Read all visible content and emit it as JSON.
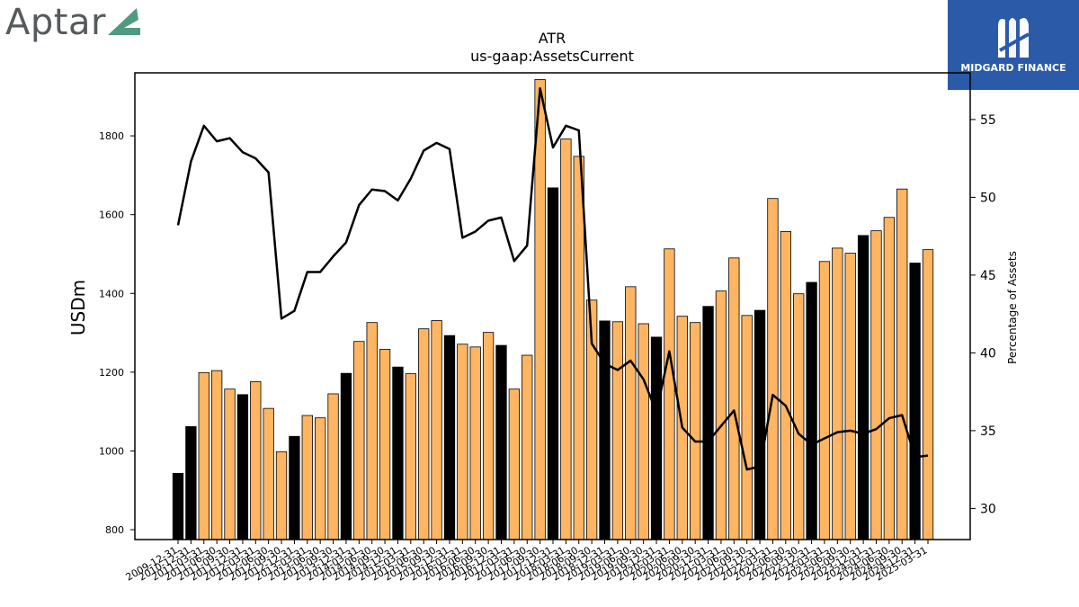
{
  "logos": {
    "left_text": "Aptar",
    "right_text": "MIDGARD FINANCE"
  },
  "colors": {
    "bar_orange": "#ffb562",
    "bar_black": "#000000",
    "line": "#000000",
    "logo_accent": "#4f9a80",
    "logo_right_bg": "#2b5aa8"
  },
  "chart_data": {
    "type": "bar",
    "title": "ATR",
    "subtitle": "us-gaap:AssetsCurrent",
    "ylabel": "USDm",
    "y2label": "Percentage of Assets",
    "ylim": [
      775,
      1960
    ],
    "y2lim": [
      28,
      58
    ],
    "yticks": [
      800,
      1000,
      1200,
      1400,
      1600,
      1800
    ],
    "y2ticks": [
      30,
      35,
      40,
      45,
      50,
      55
    ],
    "grid": false,
    "categories": [
      "2009-12-31",
      "2010-12-31",
      "2011-03-31",
      "2011-06-30",
      "2011-09-30",
      "2011-12-31",
      "2012-03-31",
      "2012-06-30",
      "2012-09-30",
      "2012-12-31",
      "2013-03-31",
      "2013-06-30",
      "2013-09-30",
      "2013-12-31",
      "2014-03-31",
      "2014-06-30",
      "2014-09-30",
      "2014-12-31",
      "2015-03-31",
      "2015-06-30",
      "2015-09-30",
      "2015-12-31",
      "2016-03-31",
      "2016-06-30",
      "2016-09-30",
      "2016-12-31",
      "2017-03-31",
      "2017-06-30",
      "2017-09-30",
      "2017-12-31",
      "2018-03-31",
      "2018-06-30",
      "2018-09-30",
      "2018-12-31",
      "2019-03-31",
      "2019-06-30",
      "2019-09-30",
      "2019-12-31",
      "2020-03-31",
      "2020-06-30",
      "2020-09-30",
      "2020-12-31",
      "2021-03-31",
      "2021-06-30",
      "2021-09-30",
      "2021-12-31",
      "2022-03-31",
      "2022-06-30",
      "2022-09-30",
      "2022-12-31",
      "2023-03-31",
      "2023-06-30",
      "2023-09-30",
      "2023-12-31",
      "2024-03-31",
      "2024-06-30",
      "2024-09-30",
      "2024-12-31",
      "2025-03-31"
    ],
    "series": [
      {
        "values": [
          943,
          1062,
          1199,
          1204,
          1157,
          1143,
          1176,
          1108,
          998,
          1037,
          1090,
          1084,
          1145,
          1197,
          1278,
          1326,
          1258,
          1213,
          1196,
          1310,
          1331,
          1293,
          1271,
          1264,
          1301,
          1268,
          1157,
          1243,
          1943,
          1668,
          1792,
          1748,
          1383,
          1330,
          1328,
          1417,
          1323,
          1289,
          1513,
          1342,
          1326,
          1367,
          1406,
          1490,
          1344,
          1357,
          1641,
          1557,
          1399,
          1428,
          1481,
          1515,
          1502,
          1547,
          1559,
          1593,
          1665,
          1477,
          1511
        ],
        "year_end": [
          true,
          true,
          false,
          false,
          false,
          true,
          false,
          false,
          false,
          true,
          false,
          false,
          false,
          true,
          false,
          false,
          false,
          true,
          false,
          false,
          false,
          true,
          false,
          false,
          false,
          true,
          false,
          false,
          false,
          true,
          false,
          false,
          false,
          true,
          false,
          false,
          false,
          true,
          false,
          false,
          false,
          true,
          false,
          false,
          false,
          true,
          false,
          false,
          false,
          true,
          false,
          false,
          false,
          true,
          false,
          false,
          false,
          true,
          false
        ]
      },
      {
        "axis": "right",
        "values": [
          48.2,
          52.3,
          54.6,
          53.6,
          53.8,
          52.9,
          52.5,
          51.6,
          42.2,
          42.7,
          45.2,
          45.2,
          46.2,
          47.1,
          49.5,
          50.5,
          50.4,
          49.8,
          51.2,
          53.0,
          53.5,
          53.1,
          47.4,
          47.8,
          48.5,
          48.7,
          45.9,
          46.9,
          57.0,
          53.2,
          54.6,
          54.3,
          40.6,
          39.3,
          38.9,
          39.5,
          38.3,
          36.2,
          40.1,
          35.2,
          34.3,
          34.3,
          35.3,
          36.3,
          32.5,
          32.7,
          37.3,
          36.6,
          34.8,
          34.1,
          34.5,
          34.9,
          35.0,
          34.8,
          35.1,
          35.8,
          36.0,
          33.3,
          33.4
        ]
      }
    ]
  }
}
